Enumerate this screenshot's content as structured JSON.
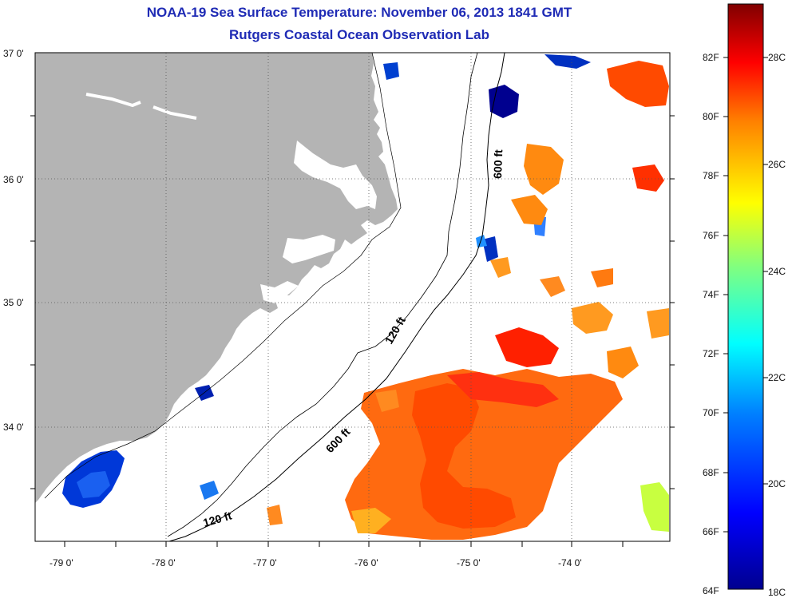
{
  "title": "NOAA-19 Sea Surface Temperature:  November 06, 2013 1841 GMT",
  "subtitle": "Rutgers Coastal Ocean Observation Lab",
  "lat_labels": [
    "37 0'",
    "36 0'",
    "35 0'",
    "34 0'"
  ],
  "lon_labels": [
    "-79 0'",
    "-78 0'",
    "-77 0'",
    "-76 0'",
    "-75 0'",
    "-74 0'"
  ],
  "contour_labels": {
    "c600_north": "600 ft",
    "c120_mid": "120 ft",
    "c600_south": "600 ft",
    "c120_south": "120 ft"
  },
  "colorbar": {
    "fahrenheit": [
      "82F",
      "80F",
      "78F",
      "76F",
      "74F",
      "72F",
      "70F",
      "68F",
      "66F",
      "64F"
    ],
    "celsius": [
      "28C",
      "26C",
      "24C",
      "22C",
      "20C",
      "18C"
    ]
  },
  "colors": {
    "land": "#b4b4b4",
    "title": "#1f2bb5",
    "cold": "#00008f",
    "warm": "#ff4a00"
  }
}
